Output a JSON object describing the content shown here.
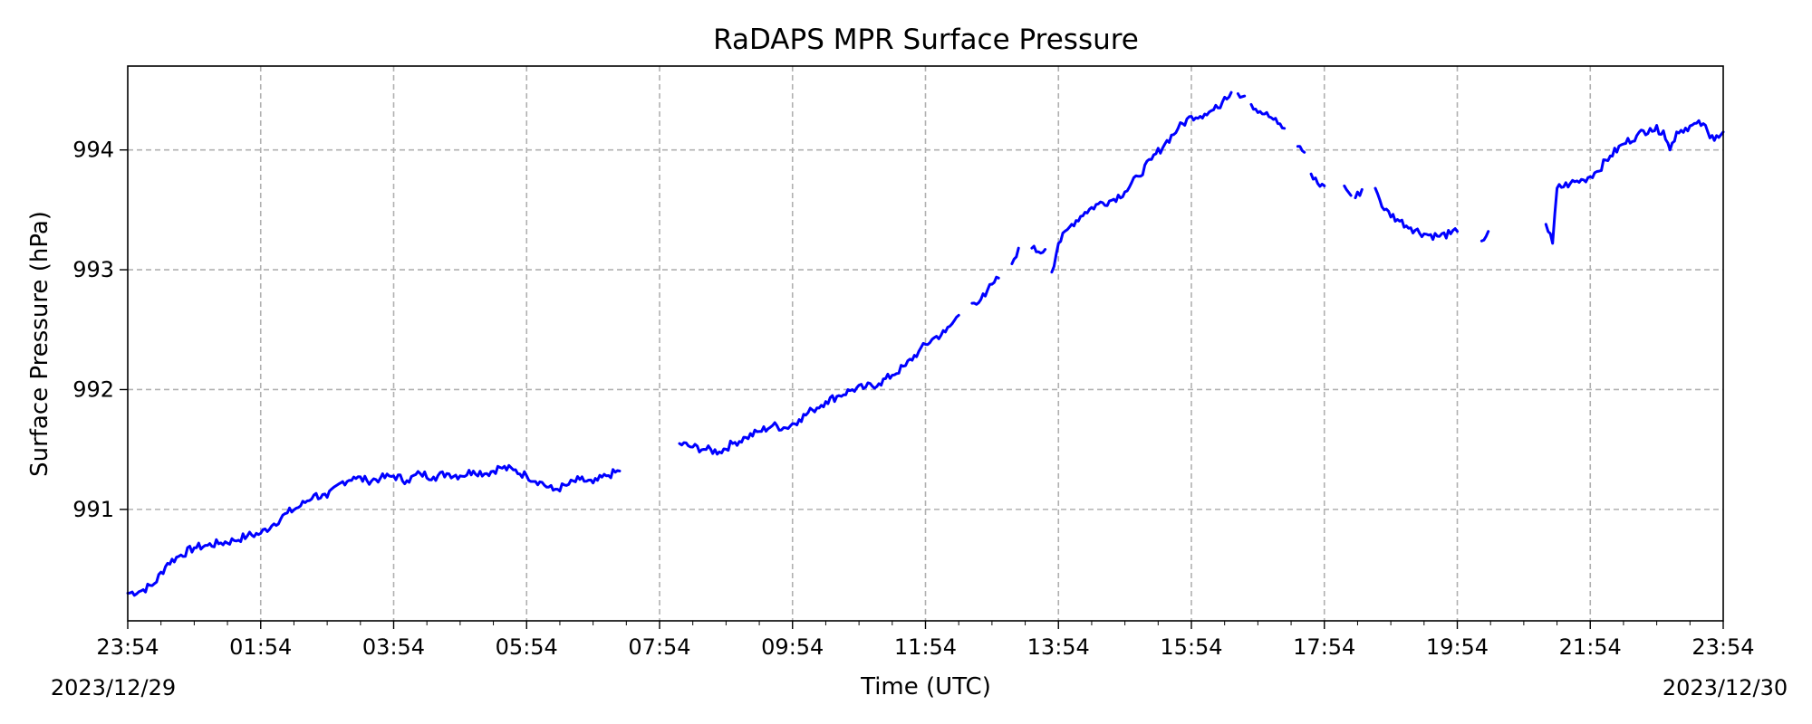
{
  "chart_data": {
    "type": "line",
    "title": "RaDAPS MPR Surface Pressure",
    "xlabel": "Time (UTC)",
    "ylabel": "Surface Pressure (hPa)",
    "x_tick_labels": [
      "23:54",
      "01:54",
      "03:54",
      "05:54",
      "07:54",
      "09:54",
      "11:54",
      "13:54",
      "15:54",
      "17:54",
      "19:54",
      "21:54",
      "23:54"
    ],
    "date_labels": {
      "start": "2023/12/29",
      "end": "2023/12/30"
    },
    "x_tick_step_minutes": 120,
    "xlim_minutes_from_start": [
      0,
      1440
    ],
    "ylim": [
      990.07,
      994.7
    ],
    "y_ticks": [
      991,
      992,
      993,
      994
    ],
    "grid": true,
    "series_color": "#0000ff",
    "series": [
      {
        "points_minutes": [
          [
            0,
            990.3
          ],
          [
            12,
            990.32
          ],
          [
            24,
            990.38
          ],
          [
            36,
            990.55
          ],
          [
            48,
            990.62
          ],
          [
            60,
            990.68
          ],
          [
            72,
            990.7
          ],
          [
            84,
            990.72
          ],
          [
            96,
            990.74
          ],
          [
            108,
            990.78
          ],
          [
            120,
            990.8
          ],
          [
            132,
            990.88
          ],
          [
            144,
            990.97
          ],
          [
            156,
            991.03
          ],
          [
            168,
            991.12
          ],
          [
            180,
            991.1
          ],
          [
            192,
            991.22
          ],
          [
            204,
            991.27
          ],
          [
            216,
            991.24
          ],
          [
            228,
            991.26
          ],
          [
            240,
            991.28
          ],
          [
            252,
            991.24
          ],
          [
            264,
            991.3
          ],
          [
            276,
            991.27
          ],
          [
            288,
            991.3
          ],
          [
            300,
            991.28
          ],
          [
            312,
            991.32
          ],
          [
            324,
            991.3
          ],
          [
            336,
            991.35
          ],
          [
            348,
            991.33
          ],
          [
            360,
            991.28
          ],
          [
            372,
            991.23
          ],
          [
            384,
            991.16
          ],
          [
            396,
            991.2
          ],
          [
            408,
            991.25
          ],
          [
            420,
            991.22
          ],
          [
            432,
            991.28
          ],
          [
            444,
            991.32
          ]
        ]
      },
      {
        "points_minutes": [
          [
            498,
            991.55
          ],
          [
            510,
            991.52
          ],
          [
            522,
            991.5
          ],
          [
            534,
            991.48
          ],
          [
            546,
            991.55
          ],
          [
            558,
            991.6
          ],
          [
            570,
            991.65
          ],
          [
            582,
            991.7
          ],
          [
            594,
            991.68
          ],
          [
            606,
            991.75
          ],
          [
            618,
            991.83
          ],
          [
            630,
            991.9
          ],
          [
            642,
            991.95
          ],
          [
            654,
            992.0
          ],
          [
            666,
            992.02
          ],
          [
            678,
            992.05
          ],
          [
            690,
            992.12
          ],
          [
            702,
            992.2
          ],
          [
            714,
            992.32
          ],
          [
            726,
            992.42
          ],
          [
            738,
            992.48
          ],
          [
            744,
            992.55
          ]
        ]
      },
      {
        "points_minutes": [
          [
            744,
            992.55
          ],
          [
            750,
            992.62
          ]
        ]
      },
      {
        "points_minutes": [
          [
            762,
            992.72
          ],
          [
            774,
            992.78
          ],
          [
            780,
            992.88
          ]
        ]
      },
      {
        "points_minutes": [
          [
            780,
            992.88
          ],
          [
            786,
            992.93
          ]
        ]
      },
      {
        "points_minutes": [
          [
            798,
            993.05
          ],
          [
            804,
            993.18
          ]
        ]
      },
      {
        "points_minutes": [
          [
            816,
            993.18
          ],
          [
            822,
            993.15
          ],
          [
            828,
            993.17
          ]
        ]
      },
      {
        "points_minutes": [
          [
            834,
            992.98
          ],
          [
            840,
            993.22
          ],
          [
            852,
            993.38
          ],
          [
            864,
            993.48
          ],
          [
            876,
            993.55
          ],
          [
            888,
            993.58
          ],
          [
            900,
            993.65
          ],
          [
            912,
            993.78
          ],
          [
            924,
            993.92
          ],
          [
            936,
            994.05
          ],
          [
            948,
            994.18
          ],
          [
            960,
            994.28
          ],
          [
            972,
            994.3
          ],
          [
            984,
            994.35
          ],
          [
            990,
            994.44
          ],
          [
            996,
            994.48
          ]
        ]
      },
      {
        "points_minutes": [
          [
            1002,
            994.47
          ],
          [
            1008,
            994.45
          ]
        ]
      },
      {
        "points_minutes": [
          [
            1014,
            994.38
          ],
          [
            1026,
            994.3
          ],
          [
            1032,
            994.27
          ],
          [
            1038,
            994.22
          ],
          [
            1044,
            994.18
          ]
        ]
      },
      {
        "points_minutes": [
          [
            1056,
            994.03
          ],
          [
            1062,
            993.98
          ]
        ]
      },
      {
        "points_minutes": [
          [
            1068,
            993.8
          ],
          [
            1074,
            993.72
          ],
          [
            1080,
            993.7
          ]
        ]
      },
      {
        "points_minutes": [
          [
            1098,
            993.7
          ],
          [
            1104,
            993.62
          ]
        ]
      },
      {
        "points_minutes": [
          [
            1108,
            993.6
          ],
          [
            1114,
            993.67
          ]
        ]
      },
      {
        "points_minutes": [
          [
            1126,
            993.68
          ],
          [
            1134,
            993.5
          ],
          [
            1146,
            993.42
          ],
          [
            1158,
            993.35
          ],
          [
            1170,
            993.3
          ],
          [
            1182,
            993.28
          ],
          [
            1194,
            993.3
          ],
          [
            1200,
            993.32
          ]
        ]
      },
      {
        "points_minutes": [
          [
            1222,
            993.24
          ],
          [
            1228,
            993.32
          ]
        ]
      },
      {
        "points_minutes": [
          [
            1280,
            993.38
          ],
          [
            1286,
            993.22
          ],
          [
            1290,
            993.68
          ],
          [
            1302,
            993.72
          ],
          [
            1314,
            993.75
          ],
          [
            1326,
            993.82
          ],
          [
            1338,
            993.95
          ],
          [
            1350,
            994.05
          ],
          [
            1362,
            994.12
          ],
          [
            1374,
            994.18
          ],
          [
            1386,
            994.16
          ],
          [
            1392,
            994.0
          ],
          [
            1398,
            994.15
          ],
          [
            1410,
            994.2
          ],
          [
            1422,
            994.22
          ],
          [
            1428,
            994.1
          ],
          [
            1434,
            994.12
          ],
          [
            1440,
            994.15
          ]
        ]
      }
    ]
  }
}
